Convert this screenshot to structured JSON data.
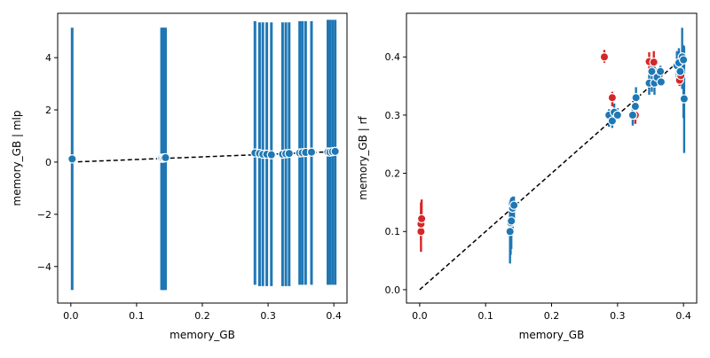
{
  "colors": {
    "blue": "#1f77b4",
    "red": "#d62728",
    "identity": "#000000",
    "axis": "#000000"
  },
  "chart_data": [
    {
      "type": "scatter",
      "xlabel": "memory_GB",
      "ylabel": "memory_GB | mlp",
      "xlim": [
        -0.02,
        0.42
      ],
      "ylim": [
        -5.4,
        5.7
      ],
      "xticks": [
        0.0,
        0.1,
        0.2,
        0.3,
        0.4
      ],
      "yticks": [
        -4,
        -2,
        0,
        2,
        4
      ],
      "xtick_labels": [
        "0.0",
        "0.1",
        "0.2",
        "0.3",
        "0.4"
      ],
      "ytick_labels": [
        "−4",
        "−2",
        "0",
        "2",
        "4"
      ],
      "reference_line": {
        "style": "dashed",
        "x": [
          0.0,
          0.4
        ],
        "y": [
          0.0,
          0.4
        ]
      },
      "series": [
        {
          "color": "#1f77b4",
          "points": [
            {
              "x": 0.002,
              "y": 0.12,
              "low": -4.9,
              "high": 5.15
            },
            {
              "x": 0.138,
              "y": 0.15,
              "low": -4.9,
              "high": 5.15
            },
            {
              "x": 0.14,
              "y": 0.15,
              "low": -4.9,
              "high": 5.15
            },
            {
              "x": 0.142,
              "y": 0.16,
              "low": -4.9,
              "high": 5.15
            },
            {
              "x": 0.144,
              "y": 0.17,
              "low": -4.9,
              "high": 5.15
            },
            {
              "x": 0.28,
              "y": 0.35,
              "low": -4.7,
              "high": 5.4
            },
            {
              "x": 0.287,
              "y": 0.33,
              "low": -4.75,
              "high": 5.35
            },
            {
              "x": 0.292,
              "y": 0.3,
              "low": -4.75,
              "high": 5.35
            },
            {
              "x": 0.298,
              "y": 0.3,
              "low": -4.75,
              "high": 5.35
            },
            {
              "x": 0.305,
              "y": 0.28,
              "low": -4.75,
              "high": 5.35
            },
            {
              "x": 0.322,
              "y": 0.3,
              "low": -4.75,
              "high": 5.35
            },
            {
              "x": 0.327,
              "y": 0.32,
              "low": -4.75,
              "high": 5.35
            },
            {
              "x": 0.332,
              "y": 0.33,
              "low": -4.75,
              "high": 5.35
            },
            {
              "x": 0.348,
              "y": 0.35,
              "low": -4.7,
              "high": 5.4
            },
            {
              "x": 0.352,
              "y": 0.36,
              "low": -4.7,
              "high": 5.4
            },
            {
              "x": 0.357,
              "y": 0.37,
              "low": -4.7,
              "high": 5.4
            },
            {
              "x": 0.366,
              "y": 0.38,
              "low": -4.7,
              "high": 5.4
            },
            {
              "x": 0.391,
              "y": 0.39,
              "low": -4.7,
              "high": 5.45
            },
            {
              "x": 0.394,
              "y": 0.38,
              "low": -4.7,
              "high": 5.45
            },
            {
              "x": 0.398,
              "y": 0.4,
              "low": -4.7,
              "high": 5.45
            },
            {
              "x": 0.402,
              "y": 0.41,
              "low": -4.7,
              "high": 5.45
            }
          ]
        }
      ]
    },
    {
      "type": "scatter",
      "xlabel": "memory_GB",
      "ylabel": "memory_GB | rf",
      "xlim": [
        -0.02,
        0.42
      ],
      "ylim": [
        -0.023,
        0.475
      ],
      "xticks": [
        0.0,
        0.1,
        0.2,
        0.3,
        0.4
      ],
      "yticks": [
        0.0,
        0.1,
        0.2,
        0.3,
        0.4
      ],
      "xtick_labels": [
        "0.0",
        "0.1",
        "0.2",
        "0.3",
        "0.4"
      ],
      "ytick_labels": [
        "0.0",
        "0.1",
        "0.2",
        "0.3",
        "0.4"
      ],
      "reference_line": {
        "style": "dashed",
        "x": [
          0.0,
          0.4
        ],
        "y": [
          0.0,
          0.4
        ]
      },
      "series": [
        {
          "color": "#d62728",
          "points": [
            {
              "x": 0.002,
              "y": 0.1,
              "low": 0.065,
              "high": 0.135
            },
            {
              "x": 0.002,
              "y": 0.113,
              "low": 0.085,
              "high": 0.15
            },
            {
              "x": 0.003,
              "y": 0.122,
              "low": 0.095,
              "high": 0.155
            },
            {
              "x": 0.28,
              "y": 0.4,
              "low": 0.39,
              "high": 0.412
            },
            {
              "x": 0.292,
              "y": 0.33,
              "low": 0.315,
              "high": 0.34
            },
            {
              "x": 0.327,
              "y": 0.3,
              "low": 0.285,
              "high": 0.31
            },
            {
              "x": 0.348,
              "y": 0.392,
              "low": 0.372,
              "high": 0.408
            },
            {
              "x": 0.355,
              "y": 0.391,
              "low": 0.37,
              "high": 0.41
            },
            {
              "x": 0.394,
              "y": 0.36,
              "low": 0.35,
              "high": 0.372
            },
            {
              "x": 0.396,
              "y": 0.368,
              "low": 0.355,
              "high": 0.382
            }
          ]
        },
        {
          "color": "#1f77b4",
          "points": [
            {
              "x": 0.137,
              "y": 0.1,
              "low": 0.045,
              "high": 0.15
            },
            {
              "x": 0.138,
              "y": 0.115,
              "low": 0.06,
              "high": 0.155
            },
            {
              "x": 0.139,
              "y": 0.118,
              "low": 0.07,
              "high": 0.158
            },
            {
              "x": 0.141,
              "y": 0.14,
              "low": 0.1,
              "high": 0.16
            },
            {
              "x": 0.143,
              "y": 0.145,
              "low": 0.115,
              "high": 0.16
            },
            {
              "x": 0.287,
              "y": 0.3,
              "low": 0.28,
              "high": 0.31
            },
            {
              "x": 0.292,
              "y": 0.29,
              "low": 0.278,
              "high": 0.305
            },
            {
              "x": 0.295,
              "y": 0.305,
              "low": 0.29,
              "high": 0.32
            },
            {
              "x": 0.3,
              "y": 0.3,
              "low": 0.292,
              "high": 0.312
            },
            {
              "x": 0.323,
              "y": 0.3,
              "low": 0.282,
              "high": 0.31
            },
            {
              "x": 0.327,
              "y": 0.315,
              "low": 0.3,
              "high": 0.335
            },
            {
              "x": 0.328,
              "y": 0.33,
              "low": 0.31,
              "high": 0.348
            },
            {
              "x": 0.348,
              "y": 0.355,
              "low": 0.335,
              "high": 0.37
            },
            {
              "x": 0.352,
              "y": 0.375,
              "low": 0.34,
              "high": 0.385
            },
            {
              "x": 0.356,
              "y": 0.355,
              "low": 0.335,
              "high": 0.385
            },
            {
              "x": 0.36,
              "y": 0.365,
              "low": 0.35,
              "high": 0.38
            },
            {
              "x": 0.365,
              "y": 0.375,
              "low": 0.362,
              "high": 0.385
            },
            {
              "x": 0.366,
              "y": 0.357,
              "low": 0.35,
              "high": 0.372
            },
            {
              "x": 0.39,
              "y": 0.385,
              "low": 0.365,
              "high": 0.41
            },
            {
              "x": 0.393,
              "y": 0.39,
              "low": 0.37,
              "high": 0.415
            },
            {
              "x": 0.395,
              "y": 0.375,
              "low": 0.36,
              "high": 0.405
            },
            {
              "x": 0.398,
              "y": 0.4,
              "low": 0.345,
              "high": 0.45
            },
            {
              "x": 0.4,
              "y": 0.395,
              "low": 0.295,
              "high": 0.42
            },
            {
              "x": 0.401,
              "y": 0.328,
              "low": 0.235,
              "high": 0.418
            }
          ]
        }
      ]
    }
  ]
}
